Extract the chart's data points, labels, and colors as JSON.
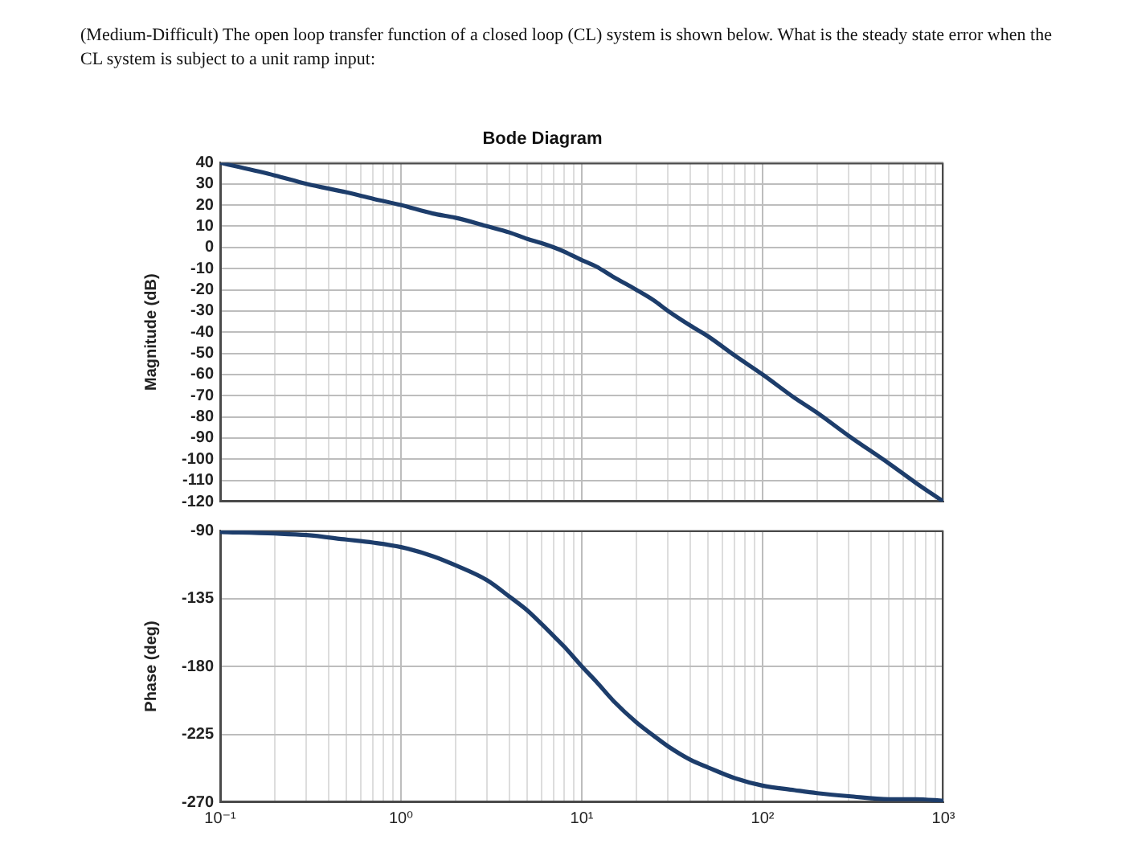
{
  "chart_data": [
    {
      "type": "line",
      "title": "Bode Diagram",
      "ylabel": "Magnitude (dB)",
      "annotations": [
        "(Medium-Difficult) The open loop transfer function of a closed loop (CL) system is shown below. What is the steady state error when the CL system is subject to a unit ramp input:"
      ],
      "x": [
        0.1,
        0.2,
        0.3,
        0.5,
        0.7,
        1,
        1.5,
        2,
        3,
        4,
        5,
        6,
        7,
        8,
        10,
        12,
        15,
        20,
        25,
        30,
        40,
        50,
        70,
        100,
        150,
        200,
        300,
        500,
        700,
        1000
      ],
      "series": [
        {
          "color": "#1d3d6b",
          "values": [
            40,
            34,
            30,
            26,
            23,
            20,
            16,
            14,
            10,
            7,
            4,
            2,
            0,
            -2,
            -6,
            -9,
            -14,
            -20,
            -25,
            -30,
            -37,
            -42,
            -51,
            -60,
            -71,
            -78,
            -89,
            -102,
            -111,
            -120
          ]
        }
      ],
      "xlim": [
        0.1,
        1000
      ],
      "ylim": [
        -120,
        40
      ],
      "xticks": [
        {
          "value": 0.1,
          "label": null
        },
        {
          "value": 0.2,
          "label": null
        },
        {
          "value": 0.3,
          "label": null
        },
        {
          "value": 0.4,
          "label": null
        },
        {
          "value": 0.5,
          "label": null
        },
        {
          "value": 0.6,
          "label": null
        },
        {
          "value": 0.7,
          "label": null
        },
        {
          "value": 0.8,
          "label": null
        },
        {
          "value": 0.9,
          "label": null
        },
        {
          "value": 1,
          "label": null
        },
        {
          "value": 2,
          "label": null
        },
        {
          "value": 3,
          "label": null
        },
        {
          "value": 4,
          "label": null
        },
        {
          "value": 5,
          "label": null
        },
        {
          "value": 6,
          "label": null
        },
        {
          "value": 7,
          "label": null
        },
        {
          "value": 8,
          "label": null
        },
        {
          "value": 9,
          "label": null
        },
        {
          "value": 10,
          "label": null
        },
        {
          "value": 20,
          "label": null
        },
        {
          "value": 30,
          "label": null
        },
        {
          "value": 40,
          "label": null
        },
        {
          "value": 50,
          "label": null
        },
        {
          "value": 60,
          "label": null
        },
        {
          "value": 70,
          "label": null
        },
        {
          "value": 80,
          "label": null
        },
        {
          "value": 90,
          "label": null
        },
        {
          "value": 100,
          "label": null
        },
        {
          "value": 200,
          "label": null
        },
        {
          "value": 300,
          "label": null
        },
        {
          "value": 400,
          "label": null
        },
        {
          "value": 500,
          "label": null
        },
        {
          "value": 600,
          "label": null
        },
        {
          "value": 700,
          "label": null
        },
        {
          "value": 800,
          "label": null
        },
        {
          "value": 900,
          "label": null
        },
        {
          "value": 1000,
          "label": null
        }
      ],
      "yticks": [
        -120,
        -110,
        -100,
        -90,
        -80,
        -70,
        -60,
        -50,
        -40,
        -30,
        -20,
        -10,
        0,
        10,
        20,
        30,
        40
      ],
      "log": "x",
      "grid": true,
      "line_style": "solid",
      "tick_labels": "y"
    },
    {
      "type": "line",
      "ylabel": "Phase (deg)",
      "x": [
        0.1,
        0.2,
        0.3,
        0.5,
        0.7,
        1,
        1.5,
        2,
        3,
        4,
        5,
        6,
        7,
        8,
        10,
        12,
        15,
        20,
        25,
        30,
        40,
        50,
        70,
        100,
        150,
        200,
        300,
        500,
        700,
        1000
      ],
      "series": [
        {
          "color": "#1d3d6b",
          "values": [
            -91,
            -92,
            -93,
            -96,
            -98,
            -101,
            -107,
            -113,
            -123,
            -134,
            -143,
            -152,
            -160,
            -167,
            -180,
            -190,
            -203,
            -217,
            -226,
            -233,
            -242,
            -247,
            -254,
            -259,
            -262,
            -264,
            -266,
            -268,
            -268,
            -269
          ]
        }
      ],
      "xlim": [
        0.1,
        1000
      ],
      "ylim": [
        -270,
        -90
      ],
      "xticks": [
        {
          "value": 0.1,
          "label": "10⁻¹"
        },
        {
          "value": 0.2,
          "label": null
        },
        {
          "value": 0.3,
          "label": null
        },
        {
          "value": 0.4,
          "label": null
        },
        {
          "value": 0.5,
          "label": null
        },
        {
          "value": 0.6,
          "label": null
        },
        {
          "value": 0.7,
          "label": null
        },
        {
          "value": 0.8,
          "label": null
        },
        {
          "value": 0.9,
          "label": null
        },
        {
          "value": 1,
          "label": "10⁰"
        },
        {
          "value": 2,
          "label": null
        },
        {
          "value": 3,
          "label": null
        },
        {
          "value": 4,
          "label": null
        },
        {
          "value": 5,
          "label": null
        },
        {
          "value": 6,
          "label": null
        },
        {
          "value": 7,
          "label": null
        },
        {
          "value": 8,
          "label": null
        },
        {
          "value": 9,
          "label": null
        },
        {
          "value": 10,
          "label": "10¹"
        },
        {
          "value": 20,
          "label": null
        },
        {
          "value": 30,
          "label": null
        },
        {
          "value": 40,
          "label": null
        },
        {
          "value": 50,
          "label": null
        },
        {
          "value": 60,
          "label": null
        },
        {
          "value": 70,
          "label": null
        },
        {
          "value": 80,
          "label": null
        },
        {
          "value": 90,
          "label": null
        },
        {
          "value": 100,
          "label": "10²"
        },
        {
          "value": 200,
          "label": null
        },
        {
          "value": 300,
          "label": null
        },
        {
          "value": 400,
          "label": null
        },
        {
          "value": 500,
          "label": null
        },
        {
          "value": 600,
          "label": null
        },
        {
          "value": 700,
          "label": null
        },
        {
          "value": 800,
          "label": null
        },
        {
          "value": 900,
          "label": null
        },
        {
          "value": 1000,
          "label": "10³"
        }
      ],
      "yticks": [
        -270,
        -225,
        -180,
        -135,
        -90
      ],
      "log": "x",
      "grid": true,
      "line_style": "solid"
    }
  ]
}
